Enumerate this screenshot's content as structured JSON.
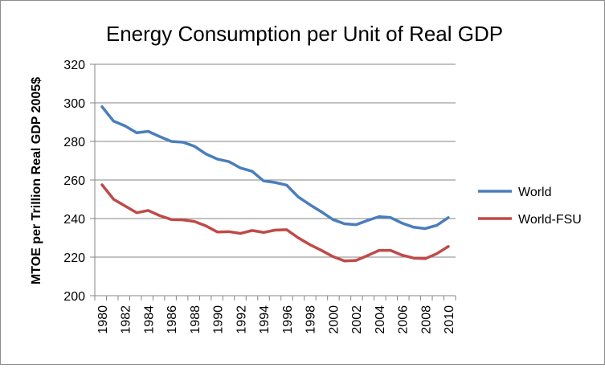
{
  "chart_data": {
    "type": "line",
    "title": "Energy Consumption per Unit of Real GDP",
    "xlabel": "",
    "ylabel": "MTOE per Trillion Real GDP 2005$",
    "xlim": [
      1980,
      2010
    ],
    "ylim": [
      200,
      320
    ],
    "y_ticks": [
      "200",
      "220",
      "240",
      "260",
      "280",
      "300",
      "320"
    ],
    "x_ticks": [
      "1980",
      "1982",
      "1984",
      "1986",
      "1988",
      "1990",
      "1992",
      "1994",
      "1996",
      "1998",
      "2000",
      "2002",
      "2004",
      "2006",
      "2008",
      "2010"
    ],
    "grid": "horizontal",
    "legend_position": "right",
    "x": [
      1980,
      1981,
      1982,
      1983,
      1984,
      1985,
      1986,
      1987,
      1988,
      1989,
      1990,
      1991,
      1992,
      1993,
      1994,
      1995,
      1996,
      1997,
      1998,
      1999,
      2000,
      2001,
      2002,
      2003,
      2004,
      2005,
      2006,
      2007,
      2008,
      2009,
      2010
    ],
    "series": [
      {
        "name": "World",
        "color": "#4a7ebb",
        "values": [
          298,
          290.5,
          288,
          284.5,
          285.2,
          282.5,
          280,
          279.6,
          277.5,
          273.5,
          270.8,
          269.5,
          266.2,
          264.5,
          259.5,
          258.7,
          257.3,
          251.2,
          247.2,
          243.5,
          239.5,
          237.3,
          236.8,
          239,
          241,
          240.5,
          237.6,
          235.5,
          234.8,
          236.5,
          240.5
        ]
      },
      {
        "name": "World-FSU",
        "color": "#be4b48",
        "values": [
          257.5,
          250,
          246.5,
          243,
          244.2,
          241.5,
          239.5,
          239.3,
          238.5,
          236.2,
          233,
          233.2,
          232.3,
          233.8,
          232.8,
          234,
          234.2,
          230,
          226.5,
          223.5,
          220.3,
          218,
          218.3,
          220.8,
          223.5,
          223.5,
          221,
          219.5,
          219.2,
          221.8,
          225.5
        ]
      }
    ]
  }
}
